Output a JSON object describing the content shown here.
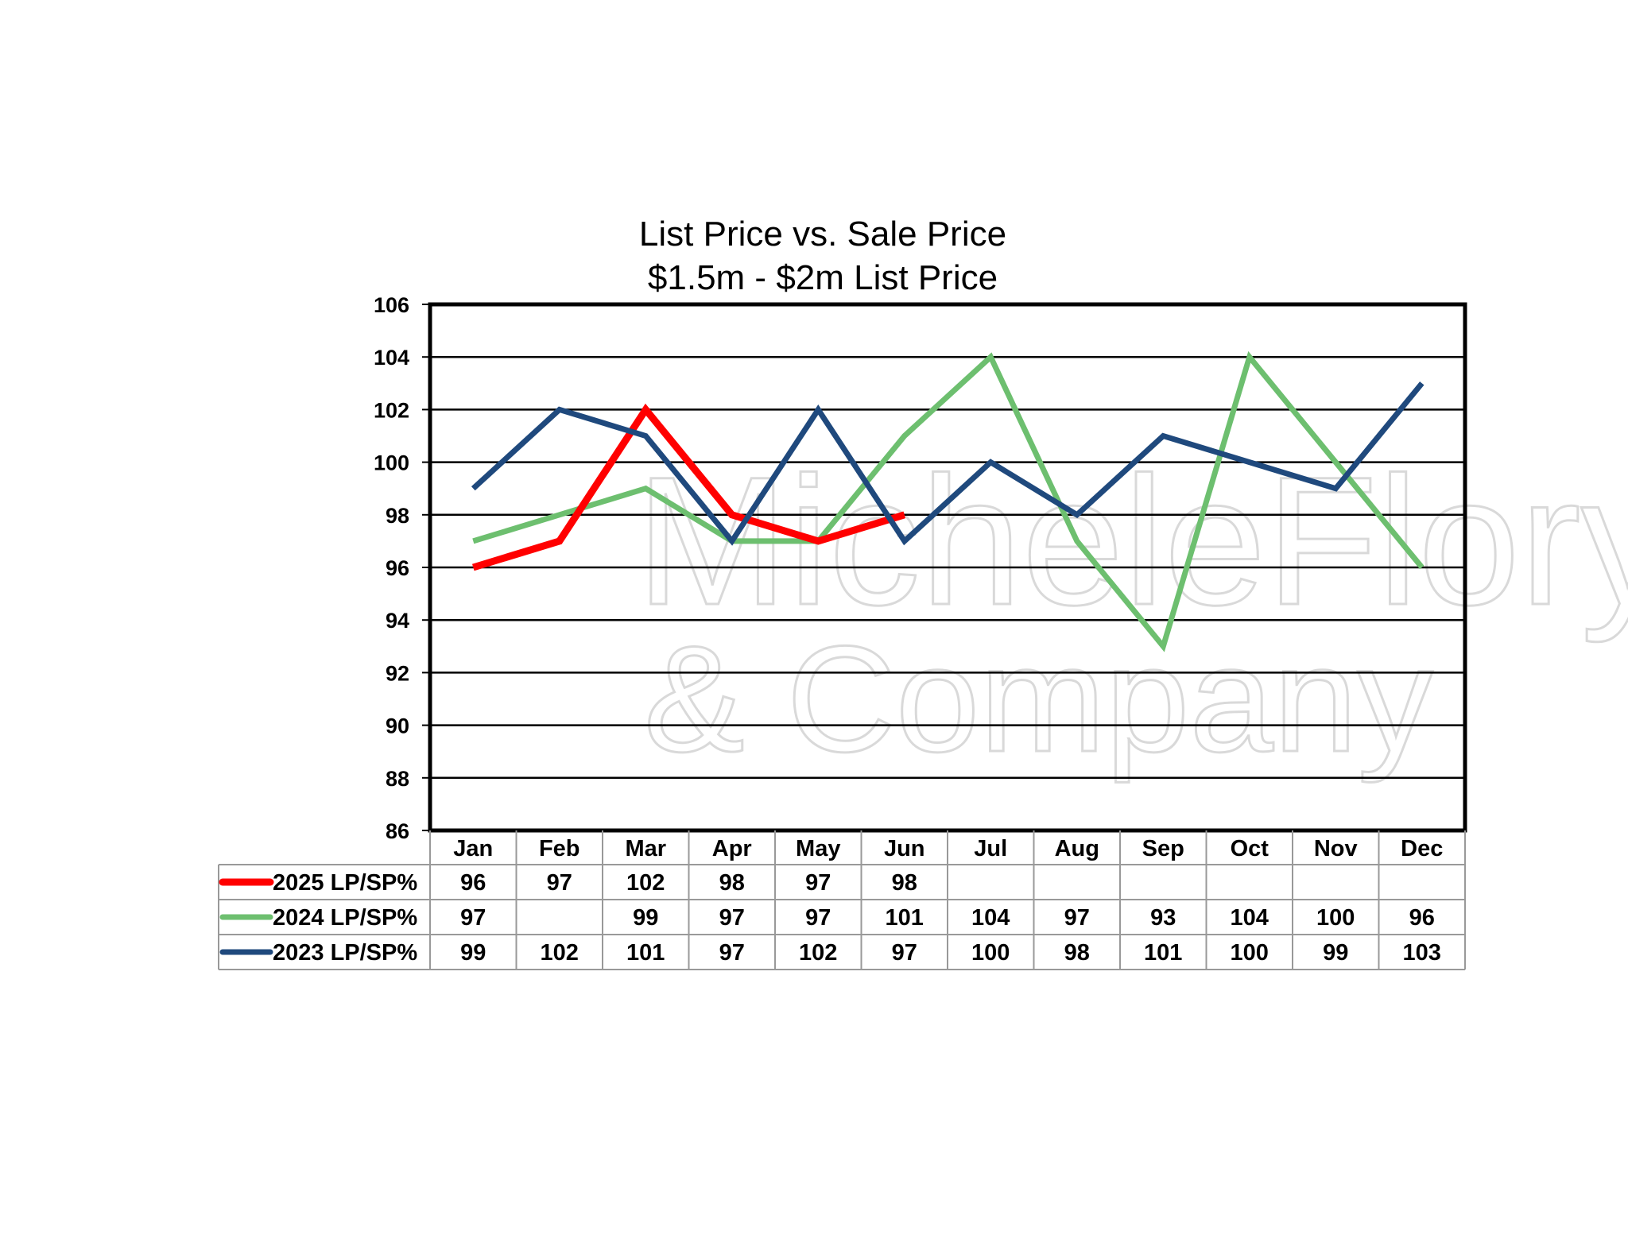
{
  "chart_data": {
    "type": "line",
    "title": "List Price vs. Sale Price",
    "subtitle": "$1.5m - $2m List Price",
    "categories": [
      "Jan",
      "Feb",
      "Mar",
      "Apr",
      "May",
      "Jun",
      "Jul",
      "Aug",
      "Sep",
      "Oct",
      "Nov",
      "Dec"
    ],
    "ylim": [
      86,
      106
    ],
    "yticks": [
      86,
      88,
      90,
      92,
      94,
      96,
      98,
      100,
      102,
      104,
      106
    ],
    "grid": true,
    "legend": "data-table-left",
    "watermark": [
      "MicheleFlory",
      "& Company"
    ],
    "series": [
      {
        "name": "2025 LP/SP%",
        "color": "#ff0000",
        "values": [
          96,
          97,
          102,
          98,
          97,
          98,
          null,
          null,
          null,
          null,
          null,
          null
        ]
      },
      {
        "name": "2024 LP/SP%",
        "color": "#6dbf6f",
        "values": [
          97,
          98,
          99,
          97,
          97,
          101,
          104,
          97,
          93,
          104,
          100,
          96
        ],
        "table_values": [
          97,
          null,
          99,
          97,
          97,
          101,
          104,
          97,
          93,
          104,
          100,
          96
        ]
      },
      {
        "name": "2023 LP/SP%",
        "color": "#1f497d",
        "values": [
          99,
          102,
          101,
          97,
          102,
          97,
          100,
          98,
          101,
          100,
          99,
          103
        ]
      }
    ]
  }
}
